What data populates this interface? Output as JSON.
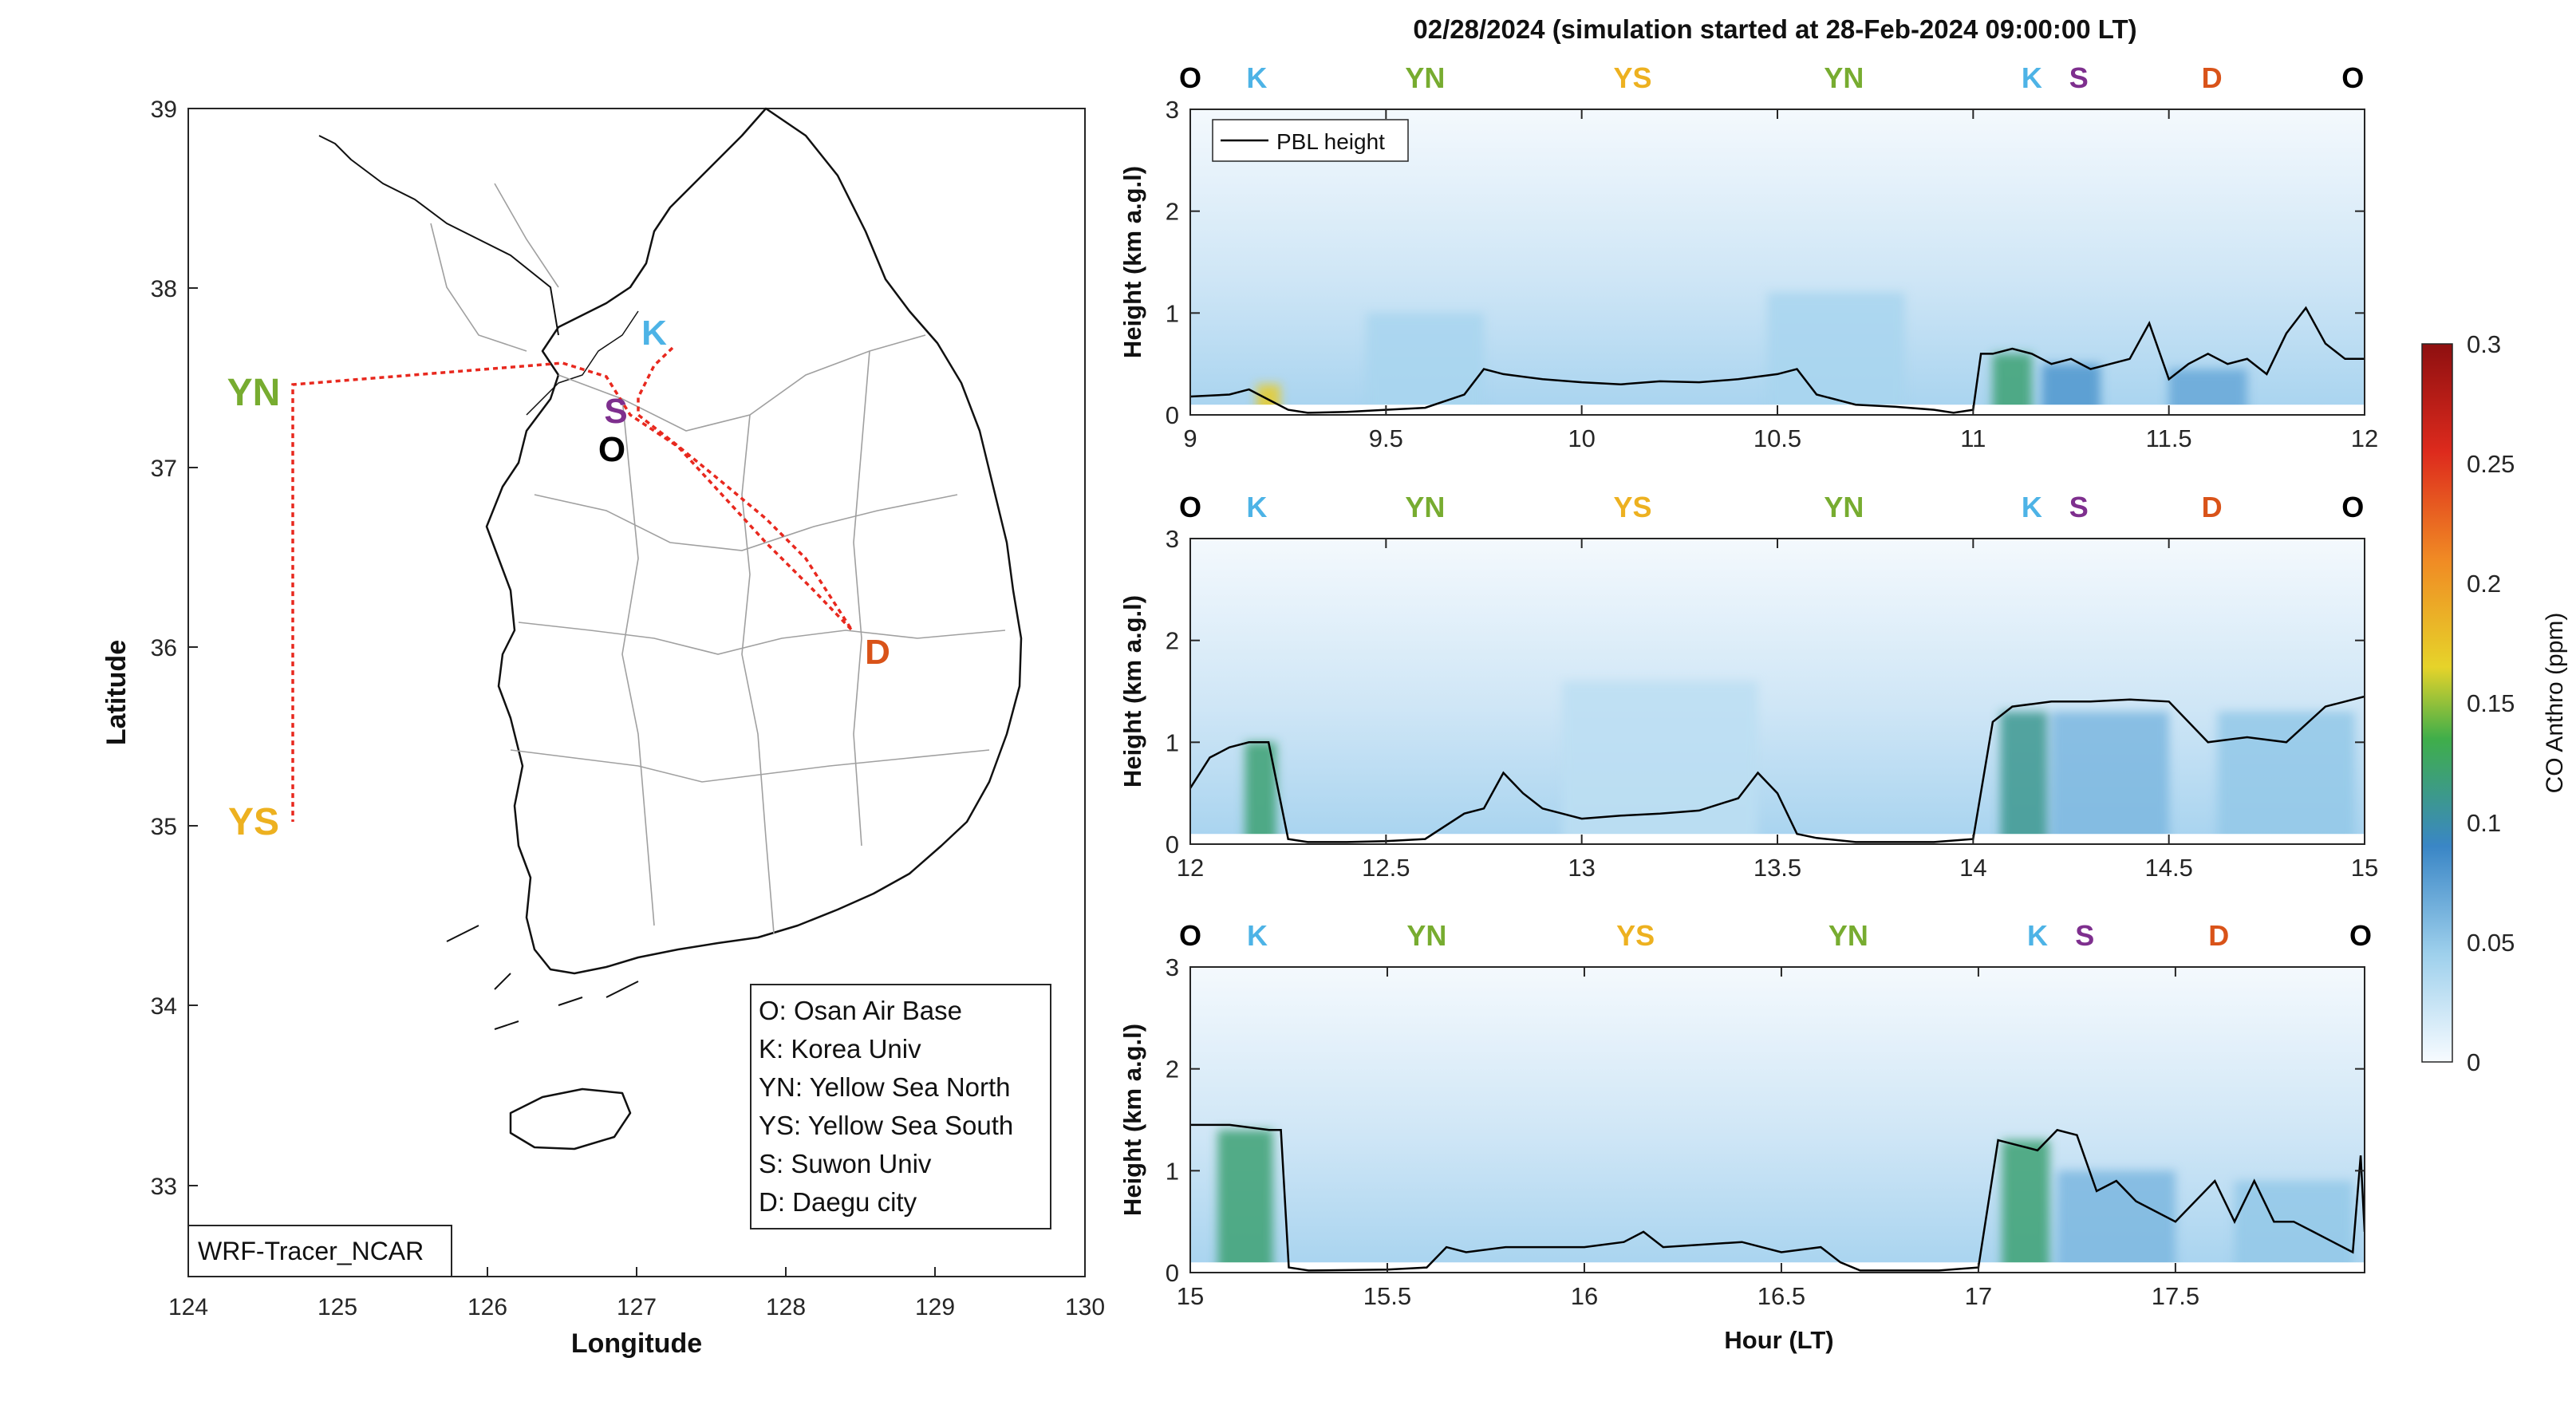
{
  "title": "02/28/2024 (simulation started at 28-Feb-2024 09:00:00 LT)",
  "colors": {
    "O": "#000000",
    "K": "#4db3e6",
    "YN": "#77ac30",
    "YS": "#edb120",
    "S": "#7e2f8e",
    "D": "#d95319",
    "pbl": "#000000",
    "track": "#e8281e"
  },
  "map": {
    "xlabel": "Longitude",
    "ylabel": "Latitude",
    "xticks": [
      "124",
      "125",
      "126",
      "127",
      "128",
      "129",
      "130"
    ],
    "yticks": [
      "33",
      "34",
      "35",
      "36",
      "37",
      "38",
      "39"
    ],
    "xlim": [
      124,
      130
    ],
    "ylim": [
      32.5,
      39
    ],
    "label_box": "WRF-Tracer_NCAR",
    "sites": [
      {
        "code": "K",
        "lon": 127.25,
        "lat": 37.6
      },
      {
        "code": "S",
        "lon": 126.95,
        "lat": 37.3
      },
      {
        "code": "O",
        "lon": 127.05,
        "lat": 37.1
      },
      {
        "code": "D",
        "lon": 128.55,
        "lat": 35.85
      },
      {
        "code": "YN",
        "lon": 124.7,
        "lat": 37.45
      },
      {
        "code": "YS",
        "lon": 124.7,
        "lat": 35.05
      }
    ],
    "legend": [
      "O: Osan Air Base",
      "K: Korea Univ",
      "YN: Yellow Sea North",
      "YS: Yellow Sea South",
      "S: Suwon Univ",
      "D: Daegu city"
    ]
  },
  "chart_data": [
    {
      "type": "heatmap",
      "xlabel": "",
      "ylabel": "Height (km a.g.l)",
      "xlim": [
        9,
        12
      ],
      "ylim": [
        0,
        3
      ],
      "xticks": [
        "9",
        "9.5",
        "10",
        "10.5",
        "11",
        "11.5",
        "12"
      ],
      "yticks": [
        "0",
        "1",
        "2",
        "3"
      ],
      "site_labels": [
        {
          "code": "O",
          "x": 9.0
        },
        {
          "code": "K",
          "x": 9.17
        },
        {
          "code": "YN",
          "x": 9.6
        },
        {
          "code": "YS",
          "x": 10.13
        },
        {
          "code": "YN",
          "x": 10.67
        },
        {
          "code": "K",
          "x": 11.15
        },
        {
          "code": "S",
          "x": 11.27
        },
        {
          "code": "D",
          "x": 11.61
        },
        {
          "code": "O",
          "x": 11.97
        }
      ],
      "legend": "PBL height",
      "series": [
        {
          "name": "PBL height",
          "x": [
            9.0,
            9.1,
            9.15,
            9.2,
            9.25,
            9.3,
            9.4,
            9.5,
            9.6,
            9.7,
            9.75,
            9.8,
            9.9,
            10.0,
            10.1,
            10.2,
            10.3,
            10.4,
            10.5,
            10.55,
            10.6,
            10.7,
            10.8,
            10.9,
            10.95,
            11.0,
            11.02,
            11.05,
            11.1,
            11.15,
            11.2,
            11.25,
            11.3,
            11.35,
            11.4,
            11.45,
            11.5,
            11.55,
            11.6,
            11.65,
            11.7,
            11.75,
            11.8,
            11.85,
            11.9,
            11.95,
            12.0
          ],
          "y": [
            0.18,
            0.2,
            0.25,
            0.15,
            0.05,
            0.02,
            0.03,
            0.05,
            0.07,
            0.2,
            0.45,
            0.4,
            0.35,
            0.32,
            0.3,
            0.33,
            0.32,
            0.35,
            0.4,
            0.45,
            0.2,
            0.1,
            0.08,
            0.05,
            0.02,
            0.05,
            0.6,
            0.6,
            0.65,
            0.6,
            0.5,
            0.55,
            0.45,
            0.5,
            0.55,
            0.9,
            0.35,
            0.5,
            0.6,
            0.5,
            0.55,
            0.4,
            0.8,
            1.05,
            0.7,
            0.55,
            0.55
          ]
        }
      ],
      "hotspots": [
        {
          "x": 9.2,
          "w": 0.06,
          "y0": 0,
          "y1": 0.3,
          "c": 0.17
        },
        {
          "x": 11.1,
          "w": 0.1,
          "y0": 0,
          "y1": 0.6,
          "c": 0.12
        },
        {
          "x": 11.25,
          "w": 0.15,
          "y0": 0,
          "y1": 0.5,
          "c": 0.08
        },
        {
          "x": 11.6,
          "w": 0.2,
          "y0": 0,
          "y1": 0.45,
          "c": 0.07
        },
        {
          "x": 9.6,
          "w": 0.3,
          "y0": 0,
          "y1": 1.0,
          "c": 0.04
        },
        {
          "x": 10.65,
          "w": 0.35,
          "y0": 0,
          "y1": 1.2,
          "c": 0.04
        }
      ]
    },
    {
      "type": "heatmap",
      "xlabel": "",
      "ylabel": "Height (km a.g.l)",
      "xlim": [
        12,
        15
      ],
      "ylim": [
        0,
        3
      ],
      "xticks": [
        "12",
        "12.5",
        "13",
        "13.5",
        "14",
        "14.5",
        "15"
      ],
      "yticks": [
        "0",
        "1",
        "2",
        "3"
      ],
      "site_labels": [
        {
          "code": "O",
          "x": 12.0
        },
        {
          "code": "K",
          "x": 12.17
        },
        {
          "code": "YN",
          "x": 12.6
        },
        {
          "code": "YS",
          "x": 13.13
        },
        {
          "code": "YN",
          "x": 13.67
        },
        {
          "code": "K",
          "x": 14.15
        },
        {
          "code": "S",
          "x": 14.27
        },
        {
          "code": "D",
          "x": 14.61
        },
        {
          "code": "O",
          "x": 14.97
        }
      ],
      "series": [
        {
          "name": "PBL height",
          "x": [
            12.0,
            12.05,
            12.1,
            12.15,
            12.2,
            12.25,
            12.3,
            12.4,
            12.5,
            12.6,
            12.7,
            12.75,
            12.8,
            12.85,
            12.9,
            12.95,
            13.0,
            13.1,
            13.2,
            13.3,
            13.4,
            13.45,
            13.5,
            13.55,
            13.6,
            13.7,
            13.8,
            13.9,
            14.0,
            14.05,
            14.1,
            14.2,
            14.3,
            14.4,
            14.5,
            14.55,
            14.6,
            14.7,
            14.8,
            14.9,
            15.0
          ],
          "y": [
            0.55,
            0.85,
            0.95,
            1.0,
            1.0,
            0.05,
            0.02,
            0.02,
            0.03,
            0.05,
            0.3,
            0.35,
            0.7,
            0.5,
            0.35,
            0.3,
            0.25,
            0.28,
            0.3,
            0.33,
            0.45,
            0.7,
            0.5,
            0.1,
            0.06,
            0.02,
            0.02,
            0.02,
            0.05,
            1.2,
            1.35,
            1.4,
            1.4,
            1.42,
            1.4,
            1.2,
            1.0,
            1.05,
            1.0,
            1.35,
            1.45
          ]
        }
      ],
      "hotspots": [
        {
          "x": 12.18,
          "w": 0.08,
          "y0": 0,
          "y1": 1.0,
          "c": 0.12
        },
        {
          "x": 14.13,
          "w": 0.12,
          "y0": 0,
          "y1": 1.3,
          "c": 0.11
        },
        {
          "x": 14.35,
          "w": 0.3,
          "y0": 0,
          "y1": 1.3,
          "c": 0.06
        },
        {
          "x": 14.8,
          "w": 0.35,
          "y0": 0,
          "y1": 1.3,
          "c": 0.05
        },
        {
          "x": 13.2,
          "w": 0.5,
          "y0": 0,
          "y1": 1.6,
          "c": 0.03
        }
      ]
    },
    {
      "type": "heatmap",
      "xlabel": "Hour (LT)",
      "ylabel": "Height (km a.g.l)",
      "xlim": [
        15,
        17.98
      ],
      "ylim": [
        0,
        3
      ],
      "xticks": [
        "15",
        "15.5",
        "16",
        "16.5",
        "17",
        "17.5"
      ],
      "yticks": [
        "0",
        "1",
        "2",
        "3"
      ],
      "site_labels": [
        {
          "code": "O",
          "x": 15.0
        },
        {
          "code": "K",
          "x": 15.17
        },
        {
          "code": "YN",
          "x": 15.6
        },
        {
          "code": "YS",
          "x": 16.13
        },
        {
          "code": "YN",
          "x": 16.67
        },
        {
          "code": "K",
          "x": 17.15
        },
        {
          "code": "S",
          "x": 17.27
        },
        {
          "code": "D",
          "x": 17.61
        },
        {
          "code": "O",
          "x": 17.97
        }
      ],
      "series": [
        {
          "name": "PBL height",
          "x": [
            15.0,
            15.1,
            15.2,
            15.23,
            15.25,
            15.3,
            15.5,
            15.6,
            15.65,
            15.7,
            15.8,
            16.0,
            16.1,
            16.15,
            16.2,
            16.4,
            16.5,
            16.6,
            16.65,
            16.7,
            16.8,
            16.9,
            17.0,
            17.05,
            17.1,
            17.15,
            17.2,
            17.25,
            17.3,
            17.35,
            17.4,
            17.5,
            17.6,
            17.65,
            17.7,
            17.75,
            17.8,
            17.85,
            17.9,
            17.95,
            17.97,
            17.98
          ],
          "y": [
            1.45,
            1.45,
            1.4,
            1.4,
            0.05,
            0.02,
            0.03,
            0.05,
            0.25,
            0.2,
            0.25,
            0.25,
            0.3,
            0.4,
            0.25,
            0.3,
            0.2,
            0.25,
            0.1,
            0.02,
            0.02,
            0.02,
            0.05,
            1.3,
            1.25,
            1.2,
            1.4,
            1.35,
            0.8,
            0.9,
            0.7,
            0.5,
            0.9,
            0.5,
            0.9,
            0.5,
            0.5,
            0.4,
            0.3,
            0.2,
            1.15,
            0.4
          ]
        }
      ],
      "hotspots": [
        {
          "x": 15.14,
          "w": 0.14,
          "y0": 0,
          "y1": 1.4,
          "c": 0.12
        },
        {
          "x": 17.12,
          "w": 0.12,
          "y0": 0,
          "y1": 1.3,
          "c": 0.12
        },
        {
          "x": 17.35,
          "w": 0.3,
          "y0": 0,
          "y1": 1.0,
          "c": 0.06
        },
        {
          "x": 17.8,
          "w": 0.3,
          "y0": 0,
          "y1": 0.9,
          "c": 0.05
        }
      ]
    }
  ],
  "colorbar": {
    "label": "CO Anthro (ppm)",
    "ticks": [
      "0",
      "0.05",
      "0.1",
      "0.15",
      "0.2",
      "0.25",
      "0.3"
    ],
    "range": [
      0,
      0.3
    ]
  }
}
